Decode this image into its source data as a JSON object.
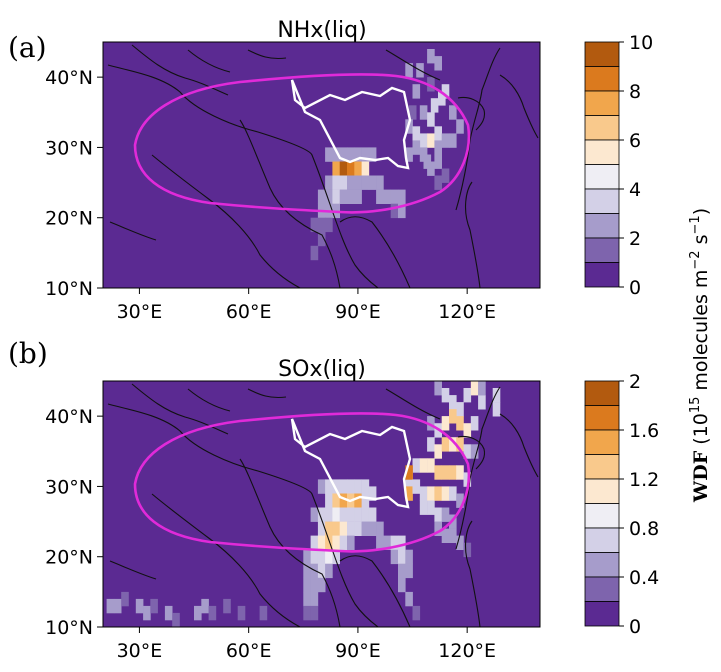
{
  "colors": {
    "background": "#5b2a92",
    "coast": "#111111",
    "magenta_contour": "#e02ad9",
    "white_contour": "#ffffff",
    "palette": [
      "#5b2a92",
      "#7e64ad",
      "#a69ccb",
      "#d3d0e7",
      "#efeef4",
      "#fce8d0",
      "#f9c98c",
      "#f1a64c",
      "#db7a1e",
      "#b25a0f"
    ]
  },
  "chart_data": [
    {
      "type": "heatmap",
      "panel_label": "(a)",
      "title": "NHx(liq)",
      "x_ticks": [
        "30°E",
        "60°E",
        "90°E",
        "120°E"
      ],
      "x_tick_values": [
        30,
        60,
        90,
        120
      ],
      "y_ticks": [
        "10°N",
        "20°N",
        "30°N",
        "40°N"
      ],
      "y_tick_values": [
        10,
        20,
        30,
        40
      ],
      "xlim": [
        20,
        140
      ],
      "ylim": [
        10,
        45
      ],
      "colorbar_levels": [
        0,
        1,
        2,
        3,
        4,
        5,
        6,
        7,
        8,
        9,
        10
      ],
      "colorbar_labels": [
        "10",
        "8",
        "6",
        "4",
        "2",
        "0"
      ],
      "cells": [
        [
          104,
          41,
          2
        ],
        [
          107,
          41,
          2
        ],
        [
          110,
          43,
          2
        ],
        [
          112,
          42,
          2
        ],
        [
          106,
          38,
          2
        ],
        [
          110,
          39,
          1
        ],
        [
          105,
          35,
          1
        ],
        [
          108,
          35,
          2
        ],
        [
          110,
          34,
          3
        ],
        [
          111,
          36,
          3
        ],
        [
          113,
          37,
          3
        ],
        [
          114,
          38,
          3
        ],
        [
          104,
          33,
          2
        ],
        [
          106,
          32,
          3
        ],
        [
          108,
          31,
          3
        ],
        [
          110,
          31,
          5
        ],
        [
          112,
          32,
          3
        ],
        [
          114,
          31,
          2
        ],
        [
          104,
          29,
          2
        ],
        [
          106,
          30,
          2
        ],
        [
          108,
          29,
          2
        ],
        [
          109,
          28,
          2
        ],
        [
          110,
          27,
          2
        ],
        [
          112,
          28,
          2
        ],
        [
          112,
          30,
          2
        ],
        [
          82,
          29,
          2
        ],
        [
          84,
          29,
          2
        ],
        [
          86,
          29,
          2
        ],
        [
          88,
          29,
          2
        ],
        [
          90,
          29,
          2
        ],
        [
          92,
          29,
          2
        ],
        [
          94,
          29,
          2
        ],
        [
          84,
          27,
          7
        ],
        [
          86,
          27,
          9
        ],
        [
          88,
          27,
          8
        ],
        [
          90,
          27,
          7
        ],
        [
          92,
          27,
          5
        ],
        [
          82,
          25,
          2
        ],
        [
          84,
          25,
          3
        ],
        [
          86,
          25,
          3
        ],
        [
          88,
          25,
          2
        ],
        [
          90,
          25,
          2
        ],
        [
          92,
          25,
          2
        ],
        [
          94,
          25,
          2
        ],
        [
          96,
          25,
          2
        ],
        [
          80,
          23,
          2
        ],
        [
          82,
          23,
          2
        ],
        [
          84,
          23,
          3
        ],
        [
          86,
          23,
          2
        ],
        [
          88,
          23,
          2
        ],
        [
          90,
          23,
          2
        ],
        [
          96,
          23,
          2
        ],
        [
          98,
          23,
          2
        ],
        [
          100,
          23,
          2
        ],
        [
          102,
          23,
          2
        ],
        [
          80,
          21,
          2
        ],
        [
          82,
          21,
          2
        ],
        [
          84,
          21,
          2
        ],
        [
          100,
          21,
          1
        ],
        [
          102,
          21,
          2
        ],
        [
          78,
          19,
          1
        ],
        [
          80,
          19,
          1
        ],
        [
          82,
          19,
          1
        ],
        [
          80,
          17,
          1
        ],
        [
          78,
          15,
          1
        ],
        [
          116,
          31,
          2
        ],
        [
          118,
          33,
          2
        ],
        [
          116,
          35,
          2
        ],
        [
          114,
          26,
          1
        ],
        [
          112,
          25,
          1
        ]
      ]
    },
    {
      "type": "heatmap",
      "panel_label": "(b)",
      "title": "SOx(liq)",
      "x_ticks": [
        "30°E",
        "60°E",
        "90°E",
        "120°E"
      ],
      "x_tick_values": [
        30,
        60,
        90,
        120
      ],
      "y_ticks": [
        "10°N",
        "20°N",
        "30°N",
        "40°N"
      ],
      "y_tick_values": [
        10,
        20,
        30,
        40
      ],
      "xlim": [
        20,
        140
      ],
      "ylim": [
        10,
        45
      ],
      "colorbar_levels": [
        0,
        0.2,
        0.4,
        0.6,
        0.8,
        1.0,
        1.2,
        1.4,
        1.6,
        1.8,
        2.0
      ],
      "colorbar_labels": [
        "2",
        "1.6",
        "1.2",
        "0.8",
        "0.4",
        "0"
      ],
      "cells": [
        [
          112,
          44,
          2
        ],
        [
          114,
          43,
          3
        ],
        [
          116,
          42,
          3
        ],
        [
          118,
          41,
          3
        ],
        [
          120,
          43,
          3
        ],
        [
          122,
          44,
          5
        ],
        [
          124,
          42,
          3
        ],
        [
          128,
          41,
          3
        ],
        [
          128,
          43,
          3
        ],
        [
          124,
          44,
          2
        ],
        [
          110,
          39,
          2
        ],
        [
          112,
          38,
          3
        ],
        [
          114,
          39,
          5
        ],
        [
          116,
          40,
          6
        ],
        [
          118,
          39,
          6
        ],
        [
          120,
          38,
          5
        ],
        [
          122,
          39,
          3
        ],
        [
          110,
          36,
          3
        ],
        [
          112,
          35,
          5
        ],
        [
          114,
          36,
          6
        ],
        [
          116,
          36,
          5
        ],
        [
          118,
          36,
          6
        ],
        [
          120,
          35,
          3
        ],
        [
          122,
          35,
          2
        ],
        [
          106,
          33,
          3
        ],
        [
          108,
          33,
          5
        ],
        [
          110,
          33,
          5
        ],
        [
          112,
          32,
          6
        ],
        [
          114,
          32,
          6
        ],
        [
          116,
          32,
          6
        ],
        [
          118,
          32,
          5
        ],
        [
          120,
          31,
          3
        ],
        [
          104,
          31,
          3
        ],
        [
          104,
          32,
          8
        ],
        [
          104,
          29,
          7
        ],
        [
          106,
          30,
          3
        ],
        [
          108,
          29,
          3
        ],
        [
          110,
          29,
          5
        ],
        [
          112,
          29,
          6
        ],
        [
          114,
          29,
          5
        ],
        [
          116,
          29,
          3
        ],
        [
          118,
          28,
          2
        ],
        [
          108,
          27,
          3
        ],
        [
          110,
          27,
          3
        ],
        [
          112,
          26,
          3
        ],
        [
          114,
          26,
          2
        ],
        [
          116,
          25,
          2
        ],
        [
          112,
          24,
          2
        ],
        [
          114,
          23,
          2
        ],
        [
          116,
          23,
          2
        ],
        [
          118,
          22,
          2
        ],
        [
          120,
          21,
          1
        ],
        [
          80,
          30,
          2
        ],
        [
          82,
          30,
          3
        ],
        [
          84,
          30,
          3
        ],
        [
          86,
          30,
          3
        ],
        [
          88,
          30,
          3
        ],
        [
          90,
          30,
          3
        ],
        [
          92,
          30,
          3
        ],
        [
          94,
          29,
          3
        ],
        [
          82,
          28,
          3
        ],
        [
          84,
          28,
          6
        ],
        [
          86,
          28,
          7
        ],
        [
          88,
          28,
          6
        ],
        [
          90,
          28,
          7
        ],
        [
          92,
          28,
          3
        ],
        [
          78,
          26,
          2
        ],
        [
          80,
          26,
          3
        ],
        [
          82,
          26,
          3
        ],
        [
          84,
          26,
          4
        ],
        [
          86,
          26,
          3
        ],
        [
          88,
          26,
          3
        ],
        [
          90,
          26,
          3
        ],
        [
          92,
          26,
          3
        ],
        [
          94,
          26,
          3
        ],
        [
          80,
          24,
          3
        ],
        [
          82,
          24,
          6
        ],
        [
          84,
          24,
          6
        ],
        [
          86,
          24,
          5
        ],
        [
          88,
          24,
          3
        ],
        [
          90,
          24,
          3
        ],
        [
          92,
          24,
          2
        ],
        [
          94,
          24,
          2
        ],
        [
          96,
          24,
          2
        ],
        [
          78,
          22,
          3
        ],
        [
          80,
          22,
          5
        ],
        [
          82,
          22,
          6
        ],
        [
          84,
          22,
          5
        ],
        [
          86,
          22,
          3
        ],
        [
          88,
          22,
          2
        ],
        [
          96,
          22,
          2
        ],
        [
          98,
          22,
          2
        ],
        [
          100,
          22,
          3
        ],
        [
          102,
          22,
          3
        ],
        [
          76,
          20,
          2
        ],
        [
          78,
          20,
          3
        ],
        [
          80,
          20,
          3
        ],
        [
          82,
          20,
          4
        ],
        [
          84,
          20,
          3
        ],
        [
          100,
          20,
          2
        ],
        [
          102,
          20,
          3
        ],
        [
          104,
          20,
          2
        ],
        [
          76,
          18,
          2
        ],
        [
          78,
          18,
          2
        ],
        [
          80,
          18,
          3
        ],
        [
          82,
          18,
          2
        ],
        [
          102,
          18,
          2
        ],
        [
          104,
          18,
          2
        ],
        [
          76,
          16,
          2
        ],
        [
          78,
          16,
          2
        ],
        [
          80,
          16,
          2
        ],
        [
          102,
          16,
          2
        ],
        [
          104,
          14,
          2
        ],
        [
          106,
          12,
          1
        ],
        [
          76,
          14,
          2
        ],
        [
          78,
          14,
          2
        ],
        [
          76,
          12,
          1
        ],
        [
          78,
          12,
          1
        ],
        [
          22,
          13,
          2
        ],
        [
          24,
          13,
          2
        ],
        [
          26,
          14,
          1
        ],
        [
          30,
          13,
          2
        ],
        [
          32,
          12,
          2
        ],
        [
          34,
          13,
          1
        ],
        [
          38,
          12,
          2
        ],
        [
          40,
          11,
          1
        ],
        [
          46,
          12,
          2
        ],
        [
          48,
          13,
          2
        ],
        [
          50,
          12,
          1
        ],
        [
          54,
          13,
          1
        ],
        [
          58,
          12,
          1
        ],
        [
          64,
          12,
          1
        ]
      ]
    }
  ],
  "colorbar_title": "WDF (10^15 molecules m^-2 s^-1)"
}
